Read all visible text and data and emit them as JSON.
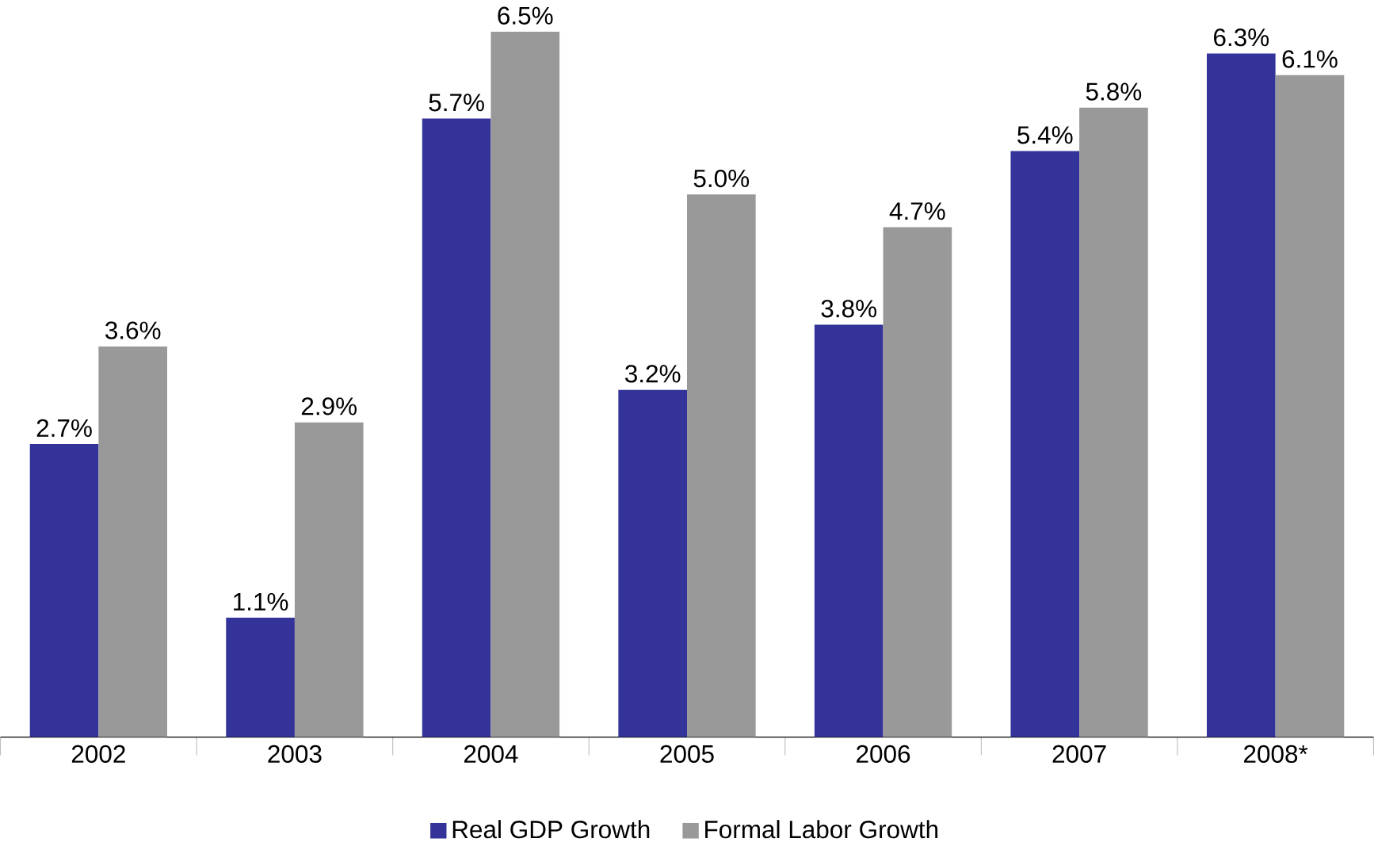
{
  "chart_data": {
    "type": "bar",
    "categories": [
      "2002",
      "2003",
      "2004",
      "2005",
      "2006",
      "2007",
      "2008*"
    ],
    "series": [
      {
        "name": "Real GDP Growth",
        "color": "#333399",
        "values": [
          2.7,
          1.1,
          5.7,
          3.2,
          3.8,
          5.4,
          6.3
        ],
        "value_labels": [
          "2.7%",
          "1.1%",
          "5.7%",
          "3.2%",
          "3.8%",
          "5.4%",
          "6.3%"
        ]
      },
      {
        "name": "Formal Labor Growth",
        "color": "#999999",
        "values": [
          3.6,
          2.9,
          6.5,
          5.0,
          4.7,
          5.8,
          6.1
        ],
        "value_labels": [
          "3.6%",
          "2.9%",
          "6.5%",
          "5.0%",
          "4.7%",
          "5.8%",
          "6.1%"
        ]
      }
    ],
    "legend": "bottom",
    "grid": false
  }
}
